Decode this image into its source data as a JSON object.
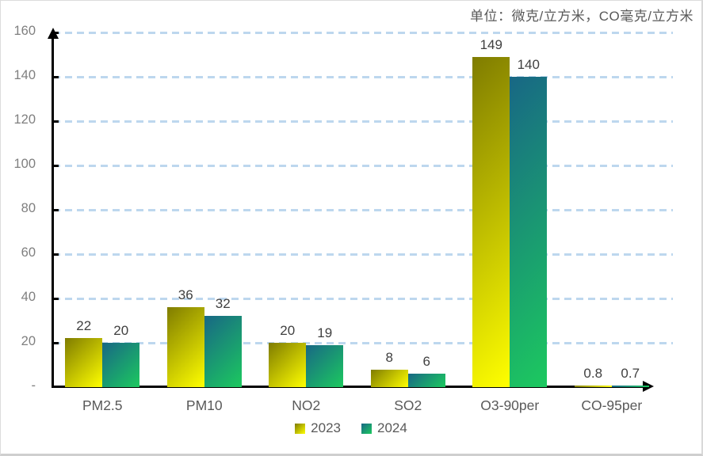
{
  "panel": {
    "unit_note": "单位：微克/立方米，CO毫克/立方米"
  },
  "chart_data": {
    "type": "bar",
    "title": "",
    "unit_note": "单位：微克/立方米，CO毫克/立方米",
    "categories": [
      "PM2.5",
      "PM10",
      "NO2",
      "SO2",
      "O3-90per",
      "CO-95per"
    ],
    "series": [
      {
        "name": "2023",
        "values": [
          22,
          36,
          20,
          8,
          149,
          0.8
        ],
        "labels": [
          "22",
          "36",
          "20",
          "8",
          "149",
          "0.8"
        ],
        "gradient_start": "#7F7C00",
        "gradient_end": "#FFFF00"
      },
      {
        "name": "2024",
        "values": [
          20,
          32,
          19,
          6,
          140,
          0.7
        ],
        "labels": [
          "20",
          "32",
          "19",
          "6",
          "140",
          "0.7"
        ],
        "gradient_start": "#186785",
        "gradient_end": "#1CC95F"
      }
    ],
    "xlabel": "",
    "ylabel": "",
    "ylim": [
      0,
      160
    ],
    "ytick_interval": 20,
    "ytick_labels": [
      "-",
      "20",
      "40",
      "60",
      "80",
      "100",
      "120",
      "140",
      "160"
    ],
    "zero_tick_label": "-",
    "grid": "dashed-horizontal",
    "gridline_color": "#BDD7EE",
    "axis_color": "#000000",
    "tick_label_color": "#7F7F7F",
    "value_label_color": "#404040",
    "category_label_color": "#595959",
    "legend_position": "bottom",
    "legend_entries": [
      "2023",
      "2024"
    ]
  }
}
